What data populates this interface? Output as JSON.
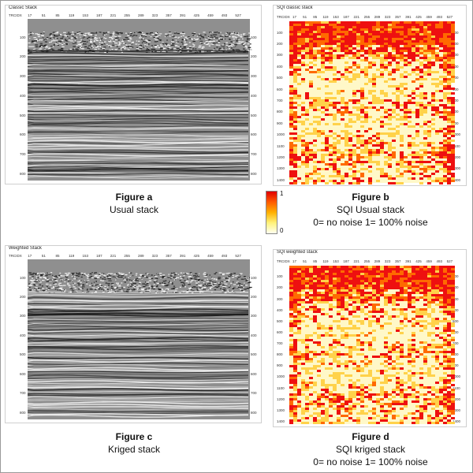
{
  "panels": {
    "a": {
      "title": "Classic Stack",
      "trace_label": "TRCIDX",
      "x_ticks": [
        "17",
        "51",
        "85",
        "119",
        "153",
        "187",
        "221",
        "255",
        "289",
        "323",
        "357",
        "391",
        "425",
        "459",
        "493",
        "527"
      ],
      "y_ticks": [
        "100",
        "200",
        "300",
        "400",
        "500",
        "600",
        "700",
        "800"
      ],
      "caption_title": "Figure a",
      "caption_sub": "Usual stack",
      "caption_extra": ""
    },
    "b": {
      "title": "SQI classic stack",
      "trace_label": "TRCIDX",
      "x_ticks": [
        "17",
        "51",
        "85",
        "119",
        "153",
        "187",
        "221",
        "255",
        "289",
        "323",
        "357",
        "391",
        "425",
        "459",
        "493",
        "527"
      ],
      "y_ticks": [
        "100",
        "200",
        "300",
        "400",
        "500",
        "600",
        "700",
        "800",
        "900",
        "1000",
        "1100",
        "1200",
        "1300",
        "1400"
      ],
      "caption_title": "Figure b",
      "caption_sub": "SQI Usual stack",
      "caption_extra": "0= no noise 1= 100% noise"
    },
    "c": {
      "title": "Weighted Stack",
      "trace_label": "TRCIDX",
      "x_ticks": [
        "17",
        "51",
        "85",
        "119",
        "153",
        "187",
        "221",
        "255",
        "289",
        "323",
        "357",
        "391",
        "425",
        "459",
        "493",
        "527"
      ],
      "y_ticks": [
        "100",
        "200",
        "300",
        "400",
        "500",
        "600",
        "700",
        "800"
      ],
      "caption_title": "Figure c",
      "caption_sub": "Kriged stack",
      "caption_extra": ""
    },
    "d": {
      "title": "SQI weighted stack",
      "trace_label": "TRCIDX",
      "x_ticks": [
        "17",
        "51",
        "85",
        "119",
        "153",
        "187",
        "221",
        "255",
        "289",
        "323",
        "357",
        "391",
        "425",
        "459",
        "493",
        "527"
      ],
      "y_ticks": [
        "100",
        "200",
        "300",
        "400",
        "500",
        "600",
        "700",
        "800",
        "900",
        "1000",
        "1100",
        "1200",
        "1300",
        "1400"
      ],
      "caption_title": "Figure d",
      "caption_sub": "SQI kriged stack",
      "caption_extra": "0= no noise 1= 100% noise"
    }
  },
  "colorbar": {
    "max_label": "1",
    "min_label": "0",
    "colors": [
      "#e00000",
      "#ffb000",
      "#fffff0"
    ]
  }
}
